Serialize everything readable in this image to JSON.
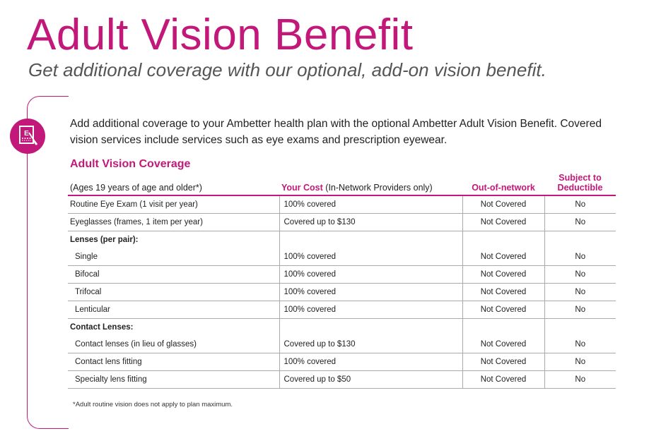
{
  "header": {
    "title": "Adult Vision Benefit",
    "subtitle": "Get additional coverage with our optional, add-on vision benefit."
  },
  "icon": {
    "name": "eye-chart-icon",
    "color": "#c2187a",
    "chart_letter": "E"
  },
  "intro": "Add additional coverage to your Ambetter health plan with the optional Ambetter Adult Vision Benefit. Covered vision services include services such as eye exams and prescription eyewear.",
  "section_title": "Adult Vision Coverage",
  "table": {
    "headers": {
      "item": "(Ages 19 years of age and older*)",
      "cost_label": "Your Cost",
      "cost_note": "(In-Network Providers only)",
      "out_of_network": "Out-of-network",
      "deductible": "Subject to Deductible"
    },
    "rows": {
      "eye_exam": {
        "item": "Routine Eye Exam (1 visit per year)",
        "cost": "100% covered",
        "out": "Not Covered",
        "ded": "No"
      },
      "eyeglasses": {
        "item": "Eyeglasses (frames, 1 item per year)",
        "cost": "Covered up to $130",
        "out": "Not Covered",
        "ded": "No"
      },
      "lenses_group": "Lenses (per pair):",
      "single": {
        "item": "Single",
        "cost": "100% covered",
        "out": "Not Covered",
        "ded": "No"
      },
      "bifocal": {
        "item": "Bifocal",
        "cost": "100% covered",
        "out": "Not Covered",
        "ded": "No"
      },
      "trifocal": {
        "item": "Trifocal",
        "cost": "100% covered",
        "out": "Not Covered",
        "ded": "No"
      },
      "lenticular": {
        "item": "Lenticular",
        "cost": "100% covered",
        "out": "Not Covered",
        "ded": "No"
      },
      "contacts_group": "Contact Lenses:",
      "contacts": {
        "item": "Contact lenses (in lieu of glasses)",
        "cost": "Covered up to $130",
        "out": "Not Covered",
        "ded": "No"
      },
      "fitting": {
        "item": "Contact lens fitting",
        "cost": "100% covered",
        "out": "Not Covered",
        "ded": "No"
      },
      "specialty": {
        "item": "Specialty lens fitting",
        "cost": "Covered up to $50",
        "out": "Not Covered",
        "ded": "No"
      }
    }
  },
  "footnote": "*Adult routine vision does not apply to plan maximum."
}
